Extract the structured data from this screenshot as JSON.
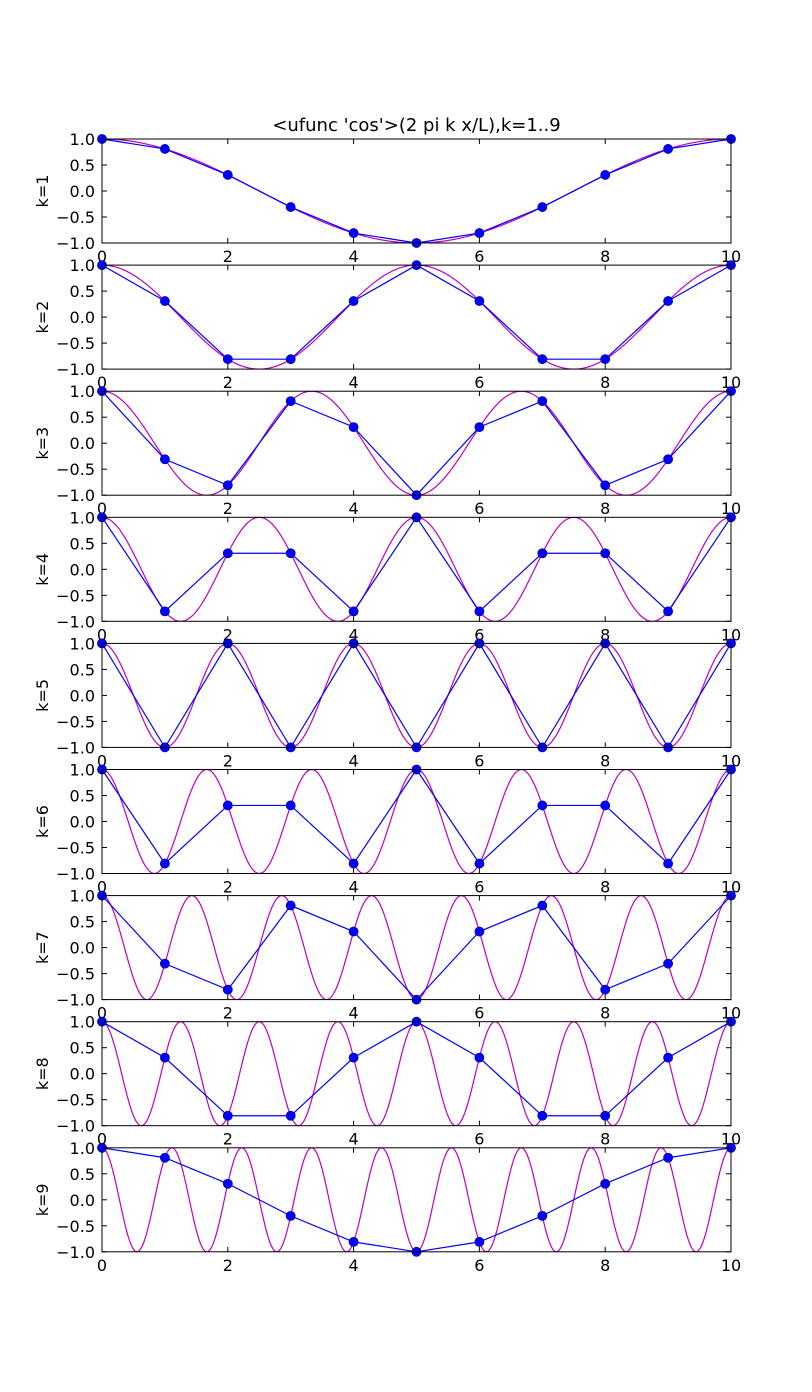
{
  "chart_data": {
    "type": "line",
    "title": "<ufunc 'cos'>(2 pi k x/L),k=1..9",
    "L": 10,
    "xlim": [
      0,
      10
    ],
    "ylim": [
      -1.0,
      1.0
    ],
    "x_ticks": [
      0,
      2,
      4,
      6,
      8,
      10
    ],
    "y_ticks": [
      1.0,
      0.5,
      0.0,
      -0.5,
      -1.0
    ],
    "x_tick_labels": [
      "0",
      "2",
      "4",
      "6",
      "8",
      "10"
    ],
    "y_tick_labels": [
      "1.0",
      "0.5",
      "0.0",
      "−0.5",
      "−1.0"
    ],
    "sample_x": [
      0,
      1,
      2,
      3,
      4,
      5,
      6,
      7,
      8,
      9,
      10
    ],
    "colors": {
      "continuous": "#bf00bf",
      "sampled": "#0000ff",
      "marker": "#0000ff"
    },
    "panels": [
      {
        "k": 1,
        "ylabel": "k=1",
        "sampled": [
          1.0,
          0.809,
          0.309,
          -0.309,
          -0.809,
          -1.0,
          -0.809,
          -0.309,
          0.309,
          0.809,
          1.0
        ]
      },
      {
        "k": 2,
        "ylabel": "k=2",
        "sampled": [
          1.0,
          0.309,
          -0.809,
          -0.809,
          0.309,
          1.0,
          0.309,
          -0.809,
          -0.809,
          0.309,
          1.0
        ]
      },
      {
        "k": 3,
        "ylabel": "k=3",
        "sampled": [
          1.0,
          -0.309,
          -0.809,
          0.809,
          0.309,
          -1.0,
          0.309,
          0.809,
          -0.809,
          -0.309,
          1.0
        ]
      },
      {
        "k": 4,
        "ylabel": "k=4",
        "sampled": [
          1.0,
          -0.809,
          0.309,
          0.309,
          -0.809,
          1.0,
          -0.809,
          0.309,
          0.309,
          -0.809,
          1.0
        ]
      },
      {
        "k": 5,
        "ylabel": "k=5",
        "sampled": [
          1.0,
          -1.0,
          1.0,
          -1.0,
          1.0,
          -1.0,
          1.0,
          -1.0,
          1.0,
          -1.0,
          1.0
        ]
      },
      {
        "k": 6,
        "ylabel": "k=6",
        "sampled": [
          1.0,
          -0.809,
          0.309,
          0.309,
          -0.809,
          1.0,
          -0.809,
          0.309,
          0.309,
          -0.809,
          1.0
        ]
      },
      {
        "k": 7,
        "ylabel": "k=7",
        "sampled": [
          1.0,
          -0.309,
          -0.809,
          0.809,
          0.309,
          -1.0,
          0.309,
          0.809,
          -0.809,
          -0.309,
          1.0
        ]
      },
      {
        "k": 8,
        "ylabel": "k=8",
        "sampled": [
          1.0,
          0.309,
          -0.809,
          -0.809,
          0.309,
          1.0,
          0.309,
          -0.809,
          -0.809,
          0.309,
          1.0
        ]
      },
      {
        "k": 9,
        "ylabel": "k=9",
        "sampled": [
          1.0,
          0.809,
          0.309,
          -0.309,
          -0.809,
          -1.0,
          -0.809,
          -0.309,
          0.309,
          0.809,
          1.0
        ]
      }
    ]
  }
}
